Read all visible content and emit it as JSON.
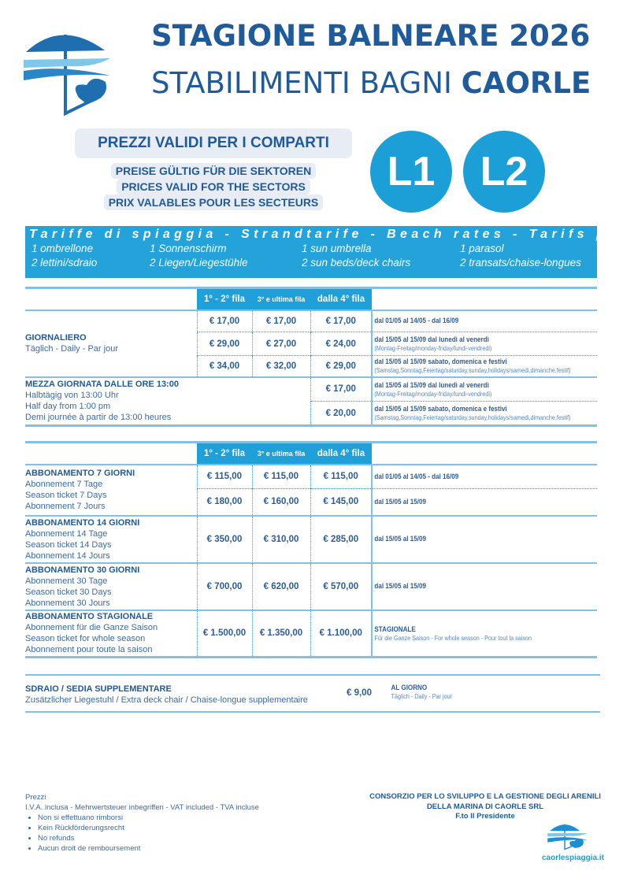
{
  "header": {
    "title_line1": "STAGIONE BALNEARE 2026",
    "title_line2_prefix": "STABILIMENTI BAGNI",
    "title_line2_bold": "CAORLE"
  },
  "validity": {
    "main": "PREZZI VALIDI PER I COMPARTI",
    "sub": [
      "PREISE GÜLTIG FÜR DIE SEKTOREN",
      "PRICES VALID FOR THE SECTORS",
      "PRIX VALABLES POUR LES SECTEURS"
    ],
    "sectors": [
      "L1",
      "L2"
    ]
  },
  "rates_band": {
    "heading": "Tariffe di spiaggia - Strandtarife - Beach rates - Tarifs plage",
    "columns": [
      {
        "line1": "1 ombrellone",
        "line2": "2 lettini/sdraio"
      },
      {
        "line1": "1 Sonnenschirm",
        "line2": "2 Liegen/Liegestühle"
      },
      {
        "line1": "1 sun umbrella",
        "line2": "2 sun beds/deck chairs"
      },
      {
        "line1": "1 parasol",
        "line2": "2 transats/chaise-longues"
      }
    ]
  },
  "columns": [
    "1° - 2° fila",
    "3° e ultima fila",
    "dalla 4° fila"
  ],
  "daily": {
    "label": "GIORNALIERO",
    "sub": "Täglich - Daily - Par jour",
    "rows": [
      {
        "prices": [
          "€ 17,00",
          "€ 17,00",
          "€ 17,00"
        ],
        "note": "dal 01/05 al 14/05 - dal 16/09",
        "note_sub": ""
      },
      {
        "prices": [
          "€ 29,00",
          "€ 27,00",
          "€ 24,00"
        ],
        "note": "dal 15/05 al 15/09 dal lunedì al venerdì",
        "note_sub": "(Montag-Freitag/monday-friday/lundi-vendredi)"
      },
      {
        "prices": [
          "€ 34,00",
          "€ 32,00",
          "€ 29,00"
        ],
        "note": "dal 15/05 al 15/09 sabato, domenica e festivi",
        "note_sub": "(Samstag,Sonntag,Feiertag/saturday,sunday,holidays/samedi,dimanche,festif)"
      }
    ]
  },
  "half_day": {
    "label": "MEZZA GIORNATA DALLE ORE 13:00",
    "lines": [
      "Halbtägig von 13:00 Uhr",
      "Half day from 1:00 pm",
      "Demi journée à partir de 13:00 heures"
    ],
    "rows": [
      {
        "price": "€ 17,00",
        "note": "dal 15/05 al 15/09 dal lunedì al venerdì",
        "note_sub": "(Montag-Freitag/monday-friday/lundi-vendredi)"
      },
      {
        "price": "€ 20,00",
        "note": "dal 15/05 al 15/09 sabato, domenica e festivi",
        "note_sub": "(Samstag,Sonntag,Feiertag/saturday,sunday,holidays/samedi,dimanche,festif)"
      }
    ]
  },
  "subscriptions": [
    {
      "label": "ABBONAMENTO 7 GIORNI",
      "lines": [
        "Abonnement 7 Tage",
        "Season ticket 7 Days",
        "Abonnement 7 Jours"
      ],
      "rows": [
        {
          "prices": [
            "€ 115,00",
            "€ 115,00",
            "€ 115,00"
          ],
          "note": "dal 01/05 al 14/05 - dal 16/09"
        },
        {
          "prices": [
            "€ 180,00",
            "€ 160,00",
            "€ 145,00"
          ],
          "note": "dal 15/05 al 15/09"
        }
      ]
    },
    {
      "label": "ABBONAMENTO 14 GIORNI",
      "lines": [
        "Abonnement 14 Tage",
        "Season ticket 14 Days",
        "Abonnement 14 Jours"
      ],
      "rows": [
        {
          "prices": [
            "€ 350,00",
            "€ 310,00",
            "€ 285,00"
          ],
          "note": "dal 15/05 al 15/09"
        }
      ]
    },
    {
      "label": "ABBONAMENTO 30 GIORNI",
      "lines": [
        "Abonnement 30 Tage",
        "Season ticket 30 Days",
        "Abonnement 30 Jours"
      ],
      "rows": [
        {
          "prices": [
            "€ 700,00",
            "€ 620,00",
            "€ 570,00"
          ],
          "note": "dal 15/05 al 15/09"
        }
      ]
    },
    {
      "label": "ABBONAMENTO STAGIONALE",
      "lines": [
        "Abonnement für die Ganze Saison",
        "Season ticket for whole season",
        "Abonnement pour toute la saison"
      ],
      "rows": [
        {
          "prices": [
            "€ 1.500,00",
            "€ 1.350,00",
            "€ 1.100,00"
          ],
          "note": "STAGIONALE",
          "note_sub": "Für die Ganze Saison - For whole season - Pour tout la saison"
        }
      ]
    }
  ],
  "extra": {
    "label": "SDRAIO / SEDIA SUPPLEMENTARE",
    "sub": "Zusätzlicher Liegestuhl / Extra deck chair / Chaise-longue supplementaire",
    "price": "€ 9,00",
    "note": "AL GIORNO",
    "note_sub": "Täglich - Daily - Par jour"
  },
  "footer": {
    "title": "Prezzi",
    "vat": "I.V.A. inclusa - Mehrwertsteuer inbegriffen - VAT included - TVA incluse",
    "bullets": [
      "Non si effettuano rimborsi",
      "Kein Rückförderungsrecht",
      "No refunds",
      "Aucun droit de remboursement"
    ],
    "consortium": [
      "CONSORZIO PER LO SVILUPPO E LA GESTIONE DEGLI ARENILI",
      "DELLA MARINA DI CAORLE SRL",
      "F.to Il Presidente"
    ],
    "website": "caorlespiaggia.it"
  },
  "colors": {
    "dark_blue": "#1f5a9a",
    "accent_blue": "#1c9fd6",
    "light_blue": "#7fc2e6"
  }
}
